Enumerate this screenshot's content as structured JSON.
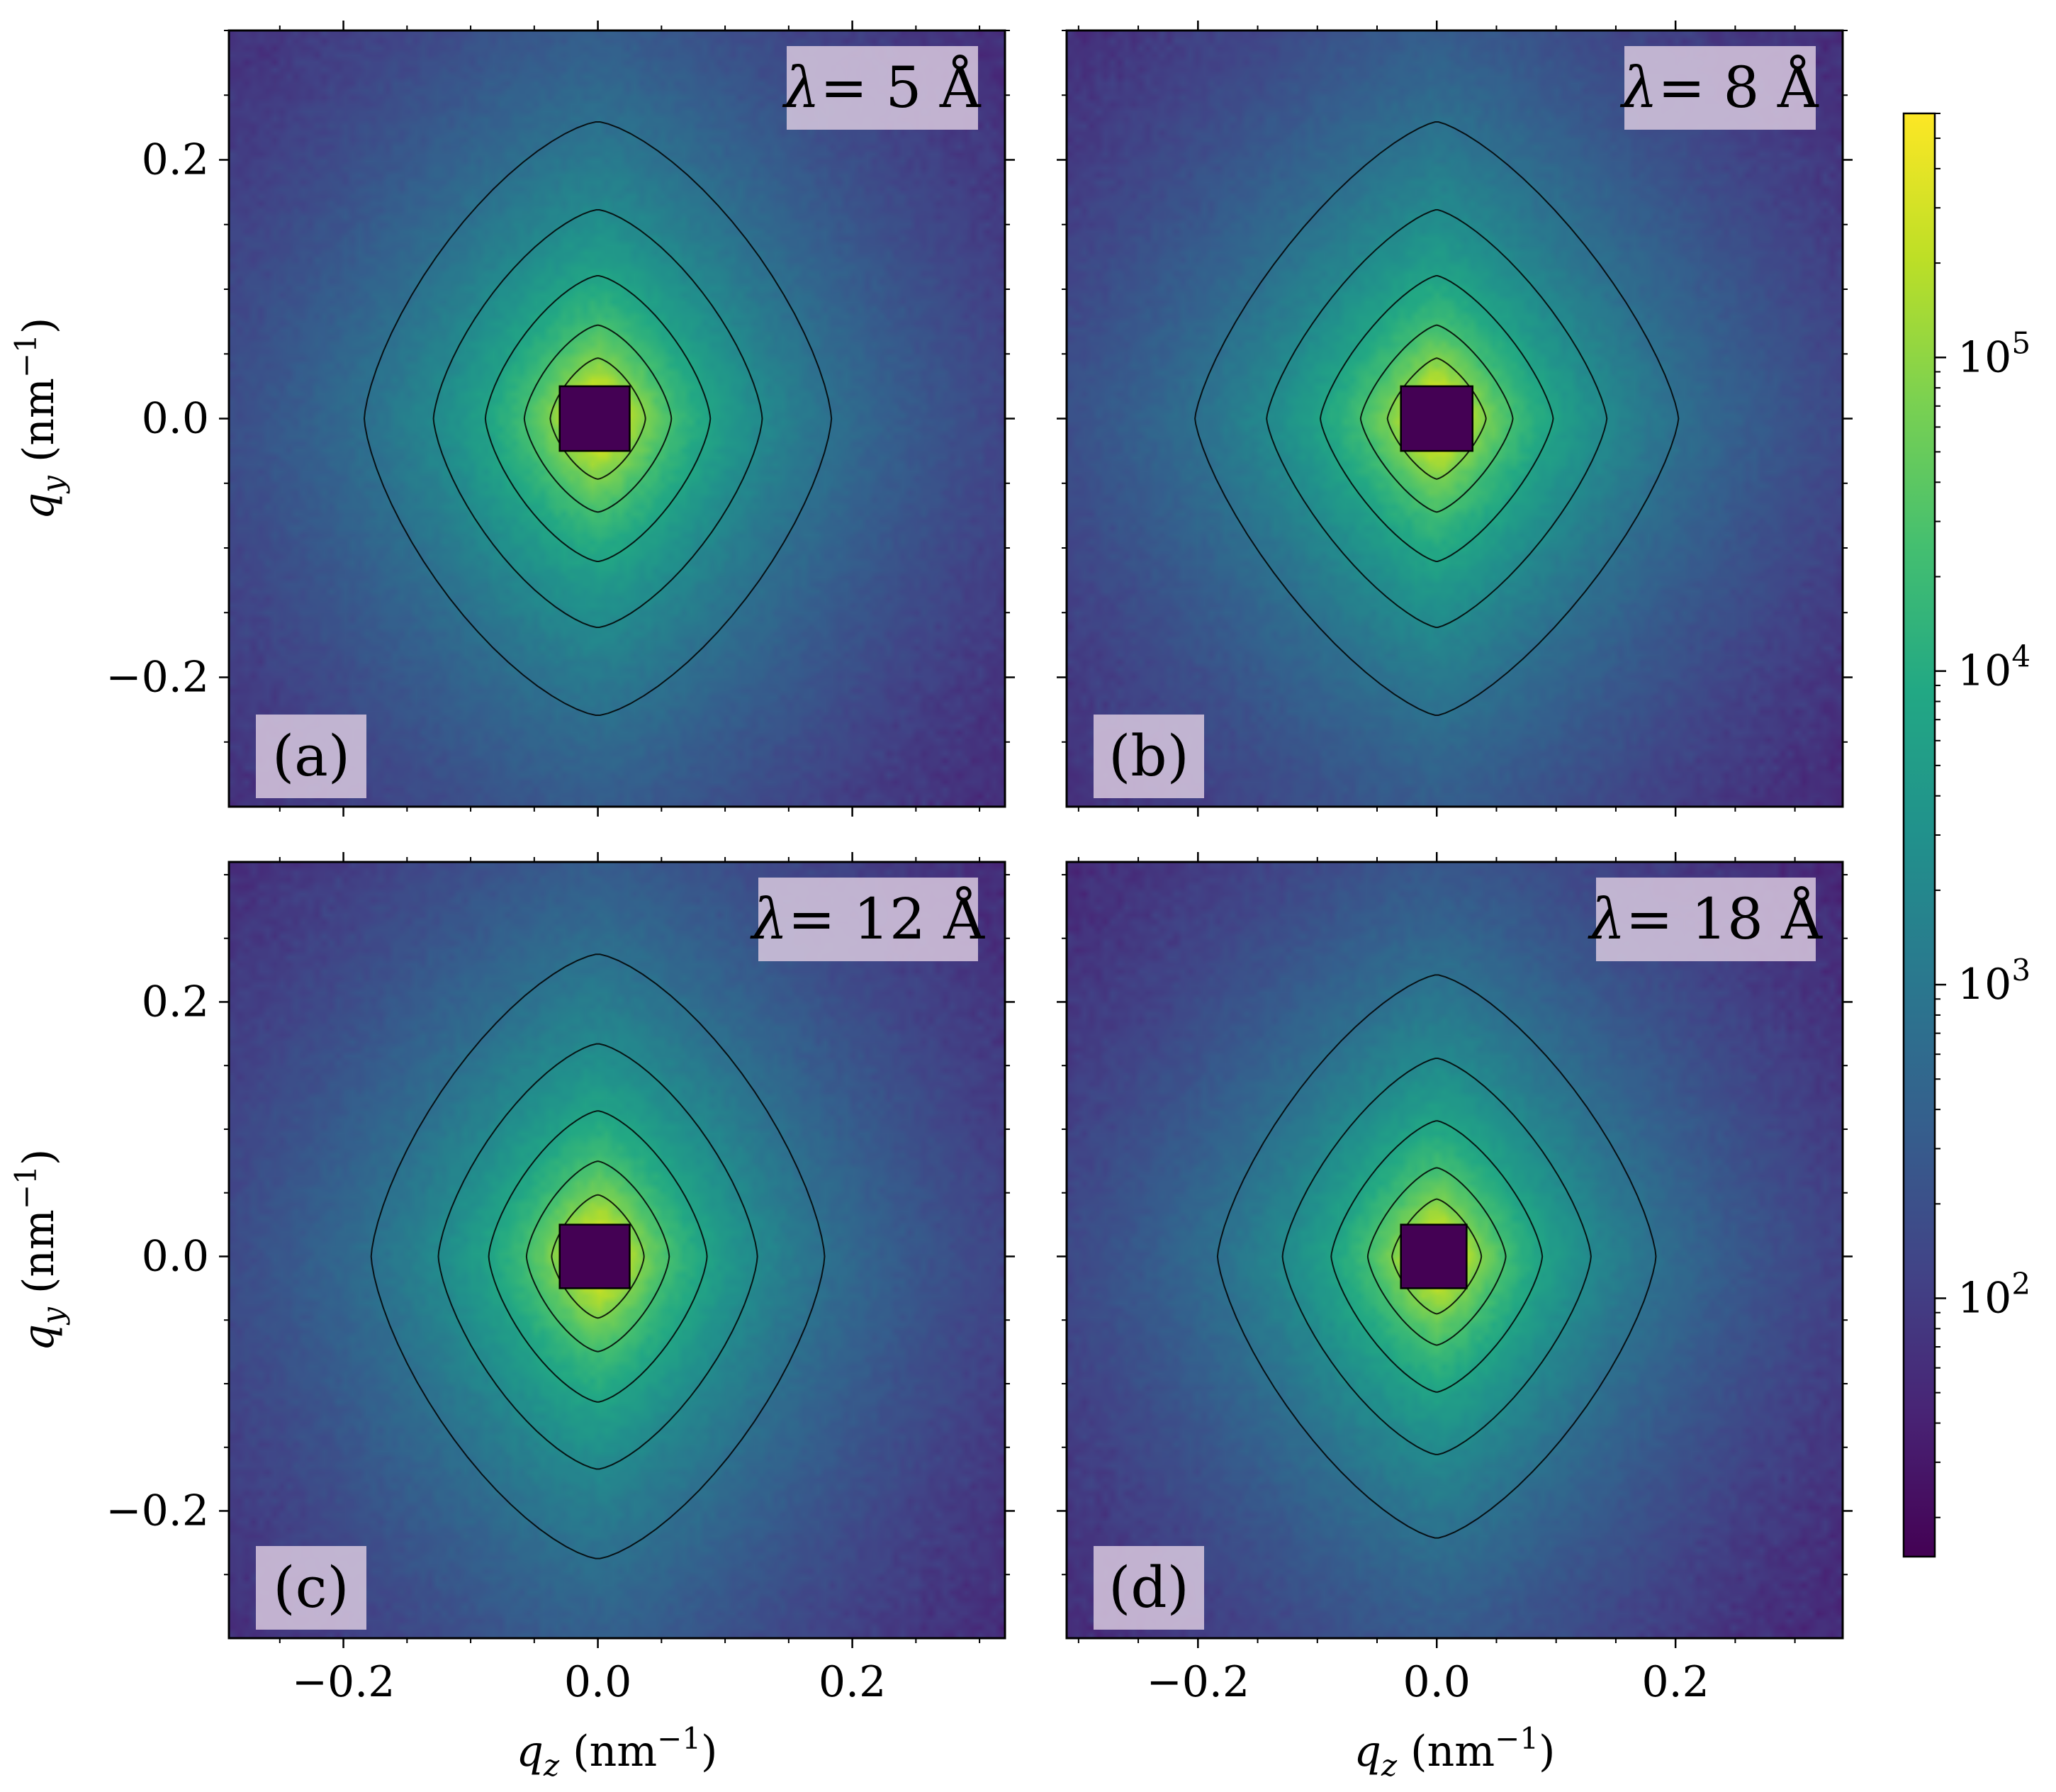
{
  "chart_data": {
    "type": "heatmap",
    "colormap": "viridis",
    "color_scale": "log",
    "colorbar": {
      "ticks": [
        {
          "base": "10",
          "exp": "2",
          "value": 100
        },
        {
          "base": "10",
          "exp": "3",
          "value": 1000
        },
        {
          "base": "10",
          "exp": "4",
          "value": 10000
        },
        {
          "base": "10",
          "exp": "5",
          "value": 100000
        }
      ],
      "range": [
        15,
        600000
      ]
    },
    "panels": [
      {
        "id": "a",
        "label": "(a)",
        "lambda_text": "= 5 Å",
        "lambda_symbol": "λ",
        "xlim": [
          -0.29,
          0.32
        ],
        "ylim": [
          -0.3,
          0.3
        ],
        "xticks": [
          "−0.2",
          "0.0",
          "0.2"
        ],
        "xtick_values": [
          -0.2,
          0.0,
          0.2
        ],
        "yticks": [
          "0.2",
          "0.0",
          "−0.2"
        ],
        "ytick_values": [
          0.2,
          0.0,
          -0.2
        ],
        "show_xticklabels": false,
        "show_yticklabels": true,
        "ylabel": {
          "var": "q",
          "sub": "y",
          "unit": "(nm",
          "exp": "−1",
          "close": ")"
        },
        "beamstop": {
          "qz": [
            -0.03,
            0.025
          ],
          "qy": [
            -0.025,
            0.025
          ]
        },
        "shape": {
          "sz": 0.068,
          "sy": 0.085,
          "p": 1.45
        }
      },
      {
        "id": "b",
        "label": "(b)",
        "lambda_text": "= 8 Å",
        "lambda_symbol": "λ",
        "xlim": [
          -0.31,
          0.34
        ],
        "ylim": [
          -0.3,
          0.3
        ],
        "xticks": [
          "−0.2",
          "0.0",
          "0.2"
        ],
        "xtick_values": [
          -0.2,
          0.0,
          0.2
        ],
        "yticks": [],
        "ytick_values": [
          0.2,
          0.0,
          -0.2
        ],
        "show_xticklabels": false,
        "show_yticklabels": false,
        "beamstop": {
          "qz": [
            -0.03,
            0.03
          ],
          "qy": [
            -0.025,
            0.025
          ]
        },
        "shape": {
          "sz": 0.075,
          "sy": 0.085,
          "p": 1.35
        }
      },
      {
        "id": "c",
        "label": "(c)",
        "lambda_text": "= 12 Å",
        "lambda_symbol": "λ",
        "xlim": [
          -0.29,
          0.32
        ],
        "ylim": [
          -0.3,
          0.31
        ],
        "xticks": [
          "−0.2",
          "0.0",
          "0.2"
        ],
        "xtick_values": [
          -0.2,
          0.0,
          0.2
        ],
        "yticks": [
          "0.2",
          "0.0",
          "−0.2"
        ],
        "ytick_values": [
          0.2,
          0.0,
          -0.2
        ],
        "show_xticklabels": true,
        "show_yticklabels": true,
        "xlabel": {
          "var": "q",
          "sub": "z",
          "unit": "(nm",
          "exp": "−1",
          "close": ")"
        },
        "ylabel": {
          "var": "q",
          "sub": "y",
          "unit": "(nm",
          "exp": "−1",
          "close": ")"
        },
        "beamstop": {
          "qz": [
            -0.03,
            0.025
          ],
          "qy": [
            -0.025,
            0.025
          ]
        },
        "shape": {
          "sz": 0.066,
          "sy": 0.088,
          "p": 1.45
        }
      },
      {
        "id": "d",
        "label": "(d)",
        "lambda_text": "= 18 Å",
        "lambda_symbol": "λ",
        "xlim": [
          -0.31,
          0.34
        ],
        "ylim": [
          -0.3,
          0.31
        ],
        "xticks": [
          "−0.2",
          "0.0",
          "0.2"
        ],
        "xtick_values": [
          -0.2,
          0.0,
          0.2
        ],
        "yticks": [],
        "ytick_values": [
          0.2,
          0.0,
          -0.2
        ],
        "show_xticklabels": true,
        "show_yticklabels": false,
        "xlabel": {
          "var": "q",
          "sub": "z",
          "unit": "(nm",
          "exp": "−1",
          "close": ")"
        },
        "beamstop": {
          "qz": [
            -0.03,
            0.025
          ],
          "qy": [
            -0.025,
            0.025
          ]
        },
        "shape": {
          "sz": 0.068,
          "sy": 0.082,
          "p": 1.4
        }
      }
    ]
  },
  "colors": {
    "background_low": "#440154",
    "label_box": "#d8c8de",
    "beamstop": "#440154",
    "contour": "#000000"
  }
}
